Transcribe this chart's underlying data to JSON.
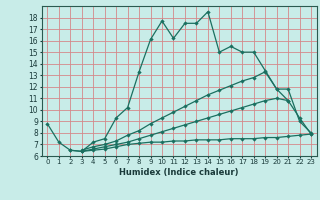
{
  "xlabel": "Humidex (Indice chaleur)",
  "bg_color": "#c8ece8",
  "grid_color": "#d4888a",
  "line_color": "#1a7060",
  "xlim": [
    -0.5,
    23.5
  ],
  "ylim": [
    6,
    19
  ],
  "xticks": [
    0,
    1,
    2,
    3,
    4,
    5,
    6,
    7,
    8,
    9,
    10,
    11,
    12,
    13,
    14,
    15,
    16,
    17,
    18,
    19,
    20,
    21,
    22,
    23
  ],
  "yticks": [
    6,
    7,
    8,
    9,
    10,
    11,
    12,
    13,
    14,
    15,
    16,
    17,
    18
  ],
  "line1_x": [
    0,
    1,
    2,
    3,
    4,
    5,
    6,
    7,
    8,
    9,
    10,
    11,
    12,
    13,
    14,
    15,
    16,
    17,
    18,
    19,
    20,
    21
  ],
  "line1_y": [
    8.8,
    7.2,
    6.5,
    6.4,
    7.2,
    7.5,
    9.3,
    10.2,
    13.3,
    16.1,
    17.7,
    16.2,
    17.5,
    17.5,
    18.5,
    15.0,
    15.5,
    15.0,
    15.0,
    13.4,
    11.8,
    10.8
  ],
  "line2_x": [
    3,
    4,
    5,
    6,
    7,
    8,
    9,
    10,
    11,
    12,
    13,
    14,
    15,
    16,
    17,
    18,
    19,
    20,
    21,
    22,
    23
  ],
  "line2_y": [
    6.5,
    6.8,
    7.0,
    7.3,
    7.8,
    8.2,
    8.8,
    9.3,
    9.8,
    10.3,
    10.8,
    11.3,
    11.7,
    12.1,
    12.5,
    12.8,
    13.3,
    11.8,
    11.8,
    9.0,
    8.0
  ],
  "line3_x": [
    3,
    4,
    5,
    6,
    7,
    8,
    9,
    10,
    11,
    12,
    13,
    14,
    15,
    16,
    17,
    18,
    19,
    20,
    21,
    22,
    23
  ],
  "line3_y": [
    6.4,
    6.6,
    6.8,
    7.0,
    7.2,
    7.5,
    7.8,
    8.1,
    8.4,
    8.7,
    9.0,
    9.3,
    9.6,
    9.9,
    10.2,
    10.5,
    10.8,
    11.0,
    10.8,
    9.3,
    7.9
  ],
  "line4_x": [
    2,
    3,
    4,
    5,
    6,
    7,
    8,
    9,
    10,
    11,
    12,
    13,
    14,
    15,
    16,
    17,
    18,
    19,
    20,
    21,
    22,
    23
  ],
  "line4_y": [
    6.5,
    6.4,
    6.5,
    6.6,
    6.8,
    7.0,
    7.1,
    7.2,
    7.2,
    7.3,
    7.3,
    7.4,
    7.4,
    7.4,
    7.5,
    7.5,
    7.5,
    7.6,
    7.6,
    7.7,
    7.8,
    7.9
  ]
}
